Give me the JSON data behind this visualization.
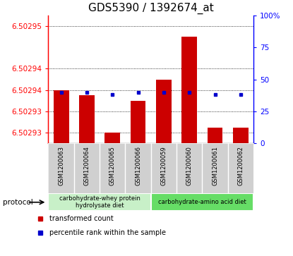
{
  "title": "GDS5390 / 1392674_at",
  "samples": [
    "GSM1200063",
    "GSM1200064",
    "GSM1200065",
    "GSM1200066",
    "GSM1200059",
    "GSM1200060",
    "GSM1200061",
    "GSM1200062"
  ],
  "transformed_counts": [
    6.502938,
    6.502937,
    6.50293,
    6.502936,
    6.50294,
    6.502948,
    6.502931,
    6.502931
  ],
  "base_value": 6.502928,
  "percentile_ranks": [
    40,
    40,
    38,
    40,
    40,
    40,
    38,
    38
  ],
  "ylim_left": [
    6.502928,
    6.502952
  ],
  "ylim_right": [
    0,
    100
  ],
  "left_ytick_positions": [
    6.50293,
    6.502934,
    6.502938,
    6.502942,
    6.50295
  ],
  "left_ytick_labels": [
    "6.50293",
    "6.50293",
    "6.50294",
    "6.50294",
    "6.50295"
  ],
  "right_yticks": [
    0,
    25,
    50,
    75,
    100
  ],
  "right_ytick_labels": [
    "0",
    "25",
    "50",
    "75",
    "100%"
  ],
  "protocol_groups": [
    {
      "label": "carbohydrate-whey protein\nhydrolysate diet",
      "start": 0,
      "end": 4,
      "color": "#c8f0c8"
    },
    {
      "label": "carbohydrate-amino acid diet",
      "start": 4,
      "end": 8,
      "color": "#66dd66"
    }
  ],
  "bar_color": "#cc0000",
  "dot_color": "#0000cc",
  "sample_bg_color": "#d0d0d0",
  "plot_bg": "#ffffff",
  "legend_items": [
    {
      "color": "#cc0000",
      "label": "transformed count",
      "marker": "s"
    },
    {
      "color": "#0000cc",
      "label": "percentile rank within the sample",
      "marker": "s"
    }
  ],
  "protocol_label": "protocol",
  "title_fontsize": 11,
  "tick_fontsize": 7.5,
  "label_fontsize": 7.5,
  "bar_width": 0.6
}
